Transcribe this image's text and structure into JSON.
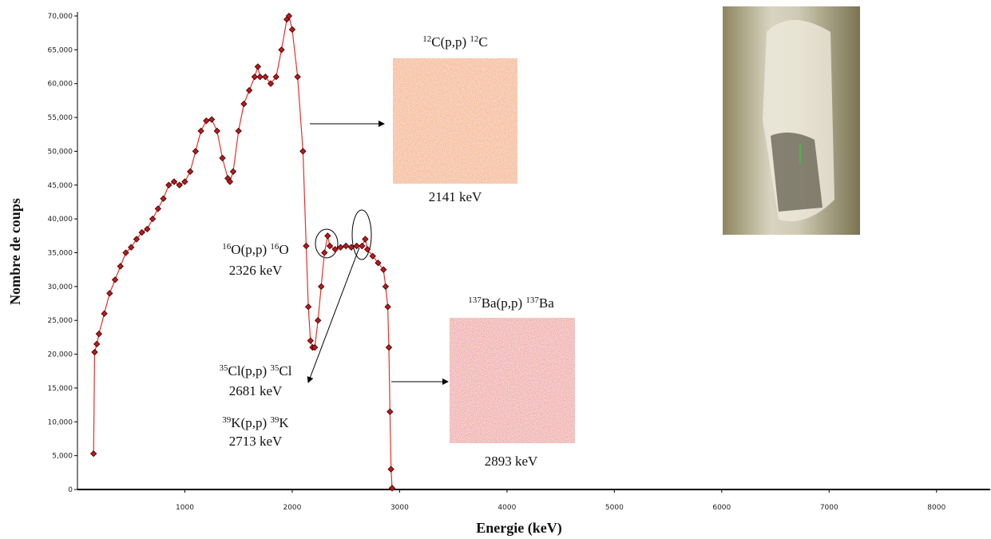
{
  "chart_data": {
    "type": "line",
    "x_label": "Energie (keV)",
    "y_label": "Nombre de coups",
    "xlim": [
      0,
      8500
    ],
    "ylim": [
      0,
      70000
    ],
    "xticks": [
      1000,
      2000,
      3000,
      4000,
      5000,
      6000,
      7000,
      8000
    ],
    "yticks": [
      0,
      {
        "value": 5000,
        "label": "5,000"
      },
      {
        "value": 10000,
        "label": "10,000"
      },
      {
        "value": 15000,
        "label": "15,000"
      },
      {
        "value": 20000,
        "label": "20,000"
      },
      {
        "value": 25000,
        "label": "25,000"
      },
      {
        "value": 30000,
        "label": "30,000"
      },
      {
        "value": 35000,
        "label": "35,000"
      },
      {
        "value": 40000,
        "label": "40,000"
      },
      {
        "value": 45000,
        "label": "45,000"
      },
      {
        "value": 50000,
        "label": "50,000"
      },
      {
        "value": 55000,
        "label": "55,000"
      },
      {
        "value": 60000,
        "label": "60,000"
      },
      {
        "value": 65000,
        "label": "65,000"
      },
      {
        "value": 70000,
        "label": "70,000"
      }
    ],
    "color": "#e8302c",
    "marker_color": "#c01818",
    "x": [
      150,
      160,
      180,
      200,
      250,
      300,
      350,
      400,
      450,
      500,
      550,
      600,
      650,
      700,
      750,
      800,
      850,
      900,
      950,
      1000,
      1050,
      1100,
      1150,
      1200,
      1250,
      1300,
      1350,
      1400,
      1420,
      1450,
      1500,
      1550,
      1600,
      1650,
      1680,
      1700,
      1750,
      1800,
      1850,
      1900,
      1950,
      1970,
      2000,
      2050,
      2100,
      2130,
      2150,
      2170,
      2190,
      2210,
      2240,
      2270,
      2300,
      2330,
      2350,
      2400,
      2450,
      2500,
      2550,
      2600,
      2650,
      2680,
      2700,
      2750,
      2800,
      2850,
      2870,
      2890,
      2900,
      2910,
      2920,
      2930
    ],
    "values": [
      5300,
      20300,
      21500,
      23000,
      26000,
      29000,
      31000,
      33000,
      35000,
      35800,
      37000,
      38000,
      38500,
      40000,
      41500,
      43000,
      45000,
      45500,
      45000,
      45500,
      47000,
      50000,
      53000,
      54500,
      54700,
      53000,
      49000,
      46000,
      45500,
      47000,
      53000,
      57000,
      59000,
      61000,
      62500,
      61000,
      61000,
      60000,
      61000,
      65000,
      69500,
      70000,
      68000,
      61000,
      50000,
      36000,
      27000,
      22000,
      21000,
      21000,
      25000,
      30000,
      35000,
      37500,
      36000,
      35500,
      35800,
      36000,
      35800,
      36000,
      36000,
      37000,
      35500,
      34500,
      33500,
      32500,
      30000,
      27000,
      21000,
      11500,
      3000,
      200
    ],
    "annotations": [
      {
        "reaction": [
          "12",
          "C(p,p) ",
          "12",
          "C"
        ],
        "energy": "2141 keV"
      },
      {
        "reaction": [
          "16",
          "O(p,p) ",
          "16",
          "O"
        ],
        "energy": "2326 keV"
      },
      {
        "reaction": [
          "35",
          "Cl(p,p) ",
          "35",
          "Cl"
        ],
        "energy": "2681 keV"
      },
      {
        "reaction": [
          "39",
          "K(p,p) ",
          "39",
          "K"
        ],
        "energy": "2713 keV"
      },
      {
        "reaction": [
          "137",
          "Ba(p,p) ",
          "137",
          "Ba"
        ],
        "energy": "2893 keV"
      }
    ]
  }
}
